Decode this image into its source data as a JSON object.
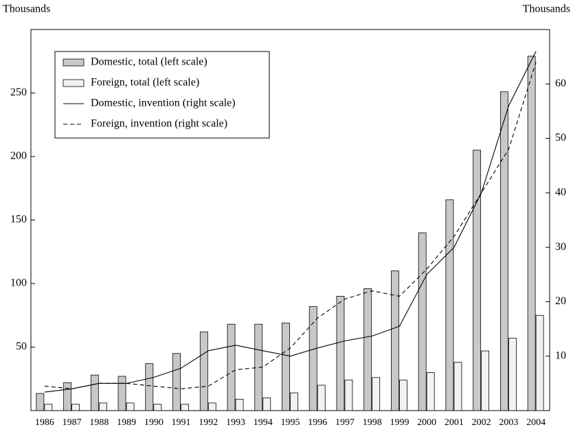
{
  "chart_data": {
    "type": "combo",
    "y_label": "Thousands",
    "y2_label": "Thousands",
    "categories": [
      "1986",
      "1987",
      "1988",
      "1989",
      "1990",
      "1991",
      "1992",
      "1993",
      "1994",
      "1995",
      "1996",
      "1997",
      "1998",
      "1999",
      "2000",
      "2001",
      "2002",
      "2003",
      "2004"
    ],
    "series": [
      {
        "name": "Domestic, total (left scale)",
        "type": "bar",
        "color": "#c8c8c8",
        "values": [
          13.5,
          22,
          28,
          27,
          37,
          45,
          62,
          68,
          68,
          69,
          82,
          90,
          96,
          110,
          140,
          166,
          205,
          251,
          279
        ]
      },
      {
        "name": "Foreign, total (left scale)",
        "type": "bar",
        "color": "#f2f2f2",
        "values": [
          5,
          5,
          6,
          6,
          5,
          5,
          6,
          9,
          10,
          14,
          20,
          24,
          26,
          24,
          30,
          38,
          47,
          57,
          75
        ]
      },
      {
        "name": "Domestic, invention (right scale)",
        "type": "line",
        "axis": "y2",
        "color": "#000000",
        "dashed": false,
        "values": [
          3.4,
          4,
          5,
          5,
          6.1,
          7.8,
          11,
          12,
          11,
          10,
          11.5,
          12.8,
          13.7,
          15.5,
          25,
          30,
          40,
          56,
          66
        ]
      },
      {
        "name": "Foreign, invention (right scale)",
        "type": "line",
        "axis": "y2",
        "color": "#000000",
        "dashed": true,
        "values": [
          4.5,
          4,
          5,
          5,
          4.5,
          4,
          4.5,
          7.5,
          8,
          11.5,
          17,
          20.5,
          22,
          21,
          26,
          32,
          40,
          48,
          64
        ]
      }
    ],
    "ylim": [
      0,
      300
    ],
    "yticks": [
      50,
      100,
      150,
      200,
      250
    ],
    "y2lim": [
      0,
      70
    ],
    "y2ticks": [
      10,
      20,
      30,
      40,
      50,
      60
    ],
    "legend": "upper left"
  }
}
